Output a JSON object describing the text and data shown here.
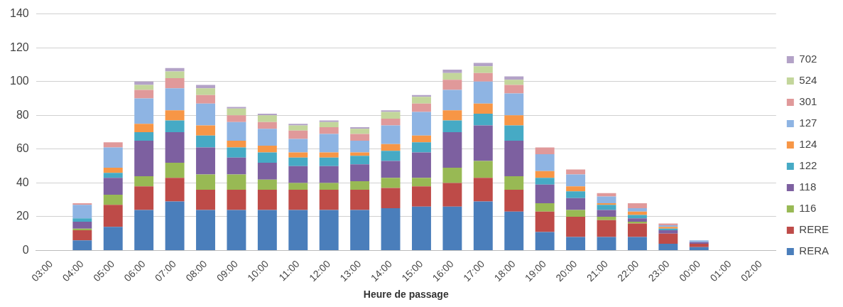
{
  "chart_data": {
    "type": "bar",
    "stacked": true,
    "xlabel": "Heure de passage",
    "legend": "right",
    "grid": "y",
    "categories": [
      "03:00",
      "04:00",
      "05:00",
      "06:00",
      "07:00",
      "08:00",
      "09:00",
      "10:00",
      "11:00",
      "12:00",
      "13:00",
      "14:00",
      "15:00",
      "16:00",
      "17:00",
      "18:00",
      "19:00",
      "20:00",
      "21:00",
      "22:00",
      "23:00",
      "00:00",
      "01:00",
      "02:00"
    ],
    "ylim": [
      0,
      140
    ],
    "yticks": [
      0,
      20,
      40,
      60,
      80,
      100,
      120,
      140
    ],
    "series": [
      {
        "name": "RERA",
        "color": "#4a7ebb",
        "values": [
          0,
          6,
          14,
          24,
          29,
          24,
          24,
          24,
          24,
          24,
          24,
          25,
          26,
          26,
          29,
          23,
          11,
          8,
          8,
          8,
          4,
          2,
          0,
          0
        ]
      },
      {
        "name": "RERE",
        "color": "#be4b48",
        "values": [
          0,
          6,
          13,
          14,
          14,
          12,
          12,
          12,
          12,
          12,
          12,
          12,
          12,
          14,
          14,
          13,
          12,
          12,
          10,
          8,
          6,
          2,
          0,
          0
        ]
      },
      {
        "name": "116",
        "color": "#98b954",
        "values": [
          0,
          1,
          6,
          6,
          9,
          9,
          9,
          6,
          4,
          4,
          5,
          6,
          5,
          9,
          10,
          8,
          5,
          4,
          2,
          1,
          0,
          0,
          0,
          0
        ]
      },
      {
        "name": "118",
        "color": "#7d60a0",
        "values": [
          0,
          4,
          10,
          21,
          18,
          16,
          10,
          10,
          10,
          10,
          10,
          10,
          15,
          21,
          21,
          21,
          11,
          7,
          4,
          2,
          2,
          1,
          0,
          0
        ]
      },
      {
        "name": "122",
        "color": "#46aac5",
        "values": [
          0,
          2,
          3,
          5,
          7,
          7,
          6,
          6,
          5,
          5,
          5,
          6,
          6,
          7,
          7,
          9,
          4,
          4,
          3,
          2,
          1,
          0,
          0,
          0
        ]
      },
      {
        "name": "124",
        "color": "#f79646",
        "values": [
          0,
          0,
          3,
          5,
          6,
          6,
          4,
          4,
          3,
          3,
          2,
          4,
          4,
          6,
          6,
          6,
          4,
          3,
          1,
          2,
          1,
          0,
          0,
          0
        ]
      },
      {
        "name": "127",
        "color": "#8eb4e3",
        "values": [
          0,
          8,
          12,
          15,
          13,
          13,
          11,
          10,
          8,
          11,
          7,
          11,
          14,
          12,
          13,
          13,
          10,
          7,
          4,
          2,
          1,
          1,
          0,
          0
        ]
      },
      {
        "name": "301",
        "color": "#e0999a",
        "values": [
          0,
          1,
          3,
          5,
          6,
          5,
          4,
          4,
          5,
          4,
          4,
          4,
          5,
          6,
          5,
          5,
          4,
          3,
          2,
          3,
          1,
          0,
          0,
          0
        ]
      },
      {
        "name": "524",
        "color": "#c3d69b",
        "values": [
          0,
          0,
          0,
          3,
          4,
          4,
          4,
          4,
          3,
          3,
          3,
          4,
          4,
          4,
          4,
          3,
          0,
          0,
          0,
          0,
          0,
          0,
          0,
          0
        ]
      },
      {
        "name": "702",
        "color": "#b3a2c7",
        "values": [
          0,
          0,
          0,
          2,
          2,
          2,
          1,
          1,
          1,
          1,
          1,
          1,
          1,
          2,
          2,
          2,
          0,
          0,
          0,
          0,
          0,
          0,
          0,
          0
        ]
      }
    ]
  }
}
